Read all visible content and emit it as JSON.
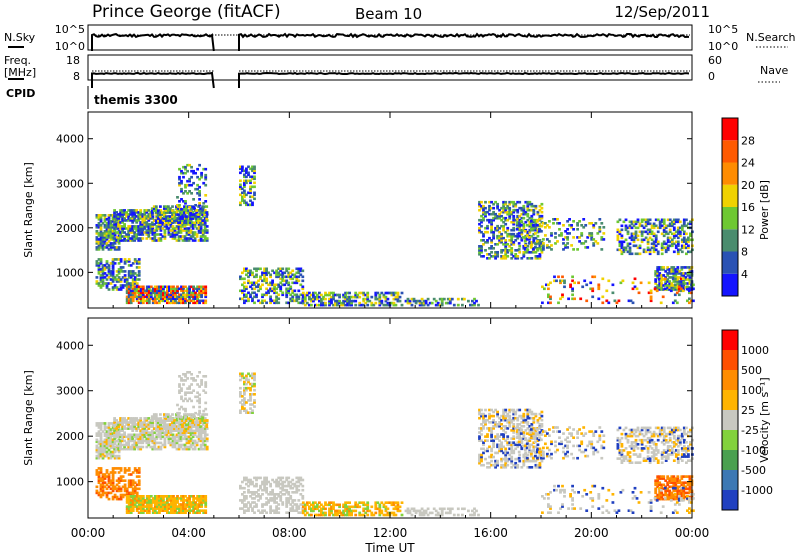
{
  "header": {
    "station": "Prince George (fitACF)",
    "beam": "Beam 10",
    "date": "12/Sep/2011"
  },
  "panels": {
    "nsky_label": "N.Sky",
    "nsky_ticks": [
      "10^5",
      "10^0"
    ],
    "nsearch_label": "N.Search",
    "nsearch_ticks": [
      "10^5",
      "10^0"
    ],
    "freq_label_1": "Freq.",
    "freq_label_2": "[MHz]",
    "freq_ticks": [
      "18",
      "8"
    ],
    "nave_label": "Nave",
    "nave_ticks": [
      "60",
      "0"
    ],
    "cpid_label": "CPID",
    "cpid_value": "themis 3300"
  },
  "chart_data": [
    {
      "type": "heatmap",
      "name": "power",
      "ylabel": "Slant Range [km]",
      "yticks": [
        "1000",
        "2000",
        "3000",
        "4000"
      ],
      "ylim": [
        200,
        4600
      ],
      "colorbar_label": "Power [dB]",
      "colorbar_ticks": [
        "4",
        "8",
        "12",
        "16",
        "20",
        "24",
        "28"
      ],
      "colorbar_colors": [
        "#1414ff",
        "#2a52b4",
        "#4a8c6e",
        "#6ec832",
        "#f0d200",
        "#ff8c00",
        "#ff5a00",
        "#ff0000"
      ]
    },
    {
      "type": "heatmap",
      "name": "velocity",
      "ylabel": "Slant Range [km]",
      "yticks": [
        "1000",
        "2000",
        "3000",
        "4000"
      ],
      "ylim": [
        200,
        4600
      ],
      "colorbar_label": "Velocity [m s⁻¹]",
      "colorbar_ticks": [
        "1000",
        "500",
        "100",
        "25",
        "-25",
        "-100",
        "-500",
        "-1000"
      ],
      "colorbar_colors": [
        "#2040c0",
        "#3c78b4",
        "#4aa050",
        "#82d23c",
        "#c8c8c0",
        "#ffb400",
        "#ff8c00",
        "#ff5000",
        "#ff0000"
      ],
      "xlabel": "Time UT",
      "xticks": [
        "00:00",
        "04:00",
        "08:00",
        "12:00",
        "16:00",
        "20:00",
        "00:00"
      ],
      "xlim": [
        0,
        24
      ]
    }
  ]
}
